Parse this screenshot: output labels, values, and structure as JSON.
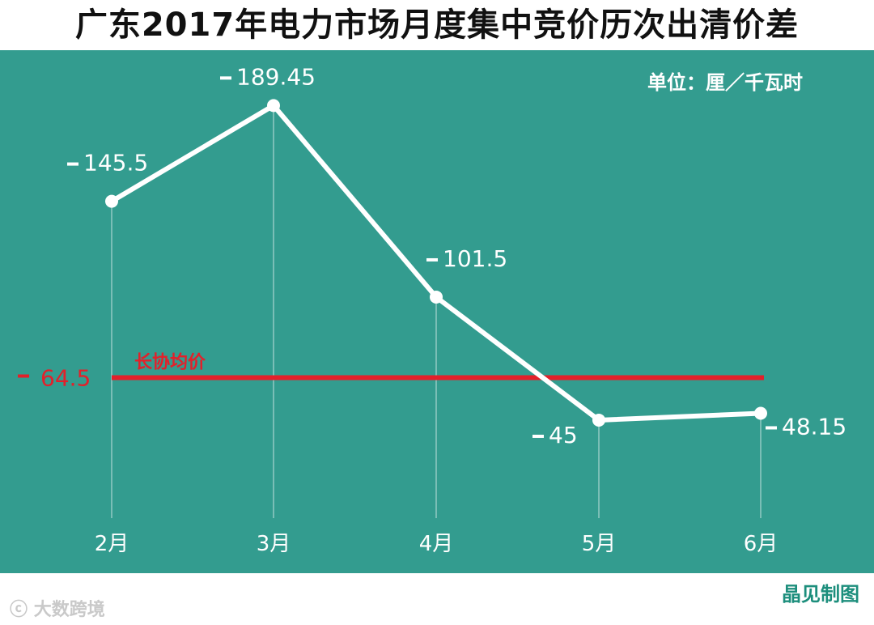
{
  "title": "广东2017年电力市场月度集中竞价历次出清价差",
  "unit_label": "单位：厘／千瓦时",
  "credit": "晶见制图",
  "watermark": "大数跨境",
  "chart_data": {
    "type": "line",
    "title": "广东2017年电力市场月度集中竞价历次出清价差",
    "categories": [
      "2月",
      "3月",
      "4月",
      "5月",
      "6月"
    ],
    "values": [
      -145.5,
      -189.45,
      -101.5,
      -45,
      -48.15
    ],
    "data_labels": [
      "145.5",
      "189.45",
      "101.5",
      "45",
      "48.15"
    ],
    "reference_line": {
      "label": "长协均价",
      "value": -64.5,
      "value_label": "64.5",
      "color": "#e3202a"
    },
    "ylim": [
      0,
      -250
    ],
    "grid": false,
    "colors": {
      "background": "#339c8f",
      "line": "#ffffff"
    }
  }
}
